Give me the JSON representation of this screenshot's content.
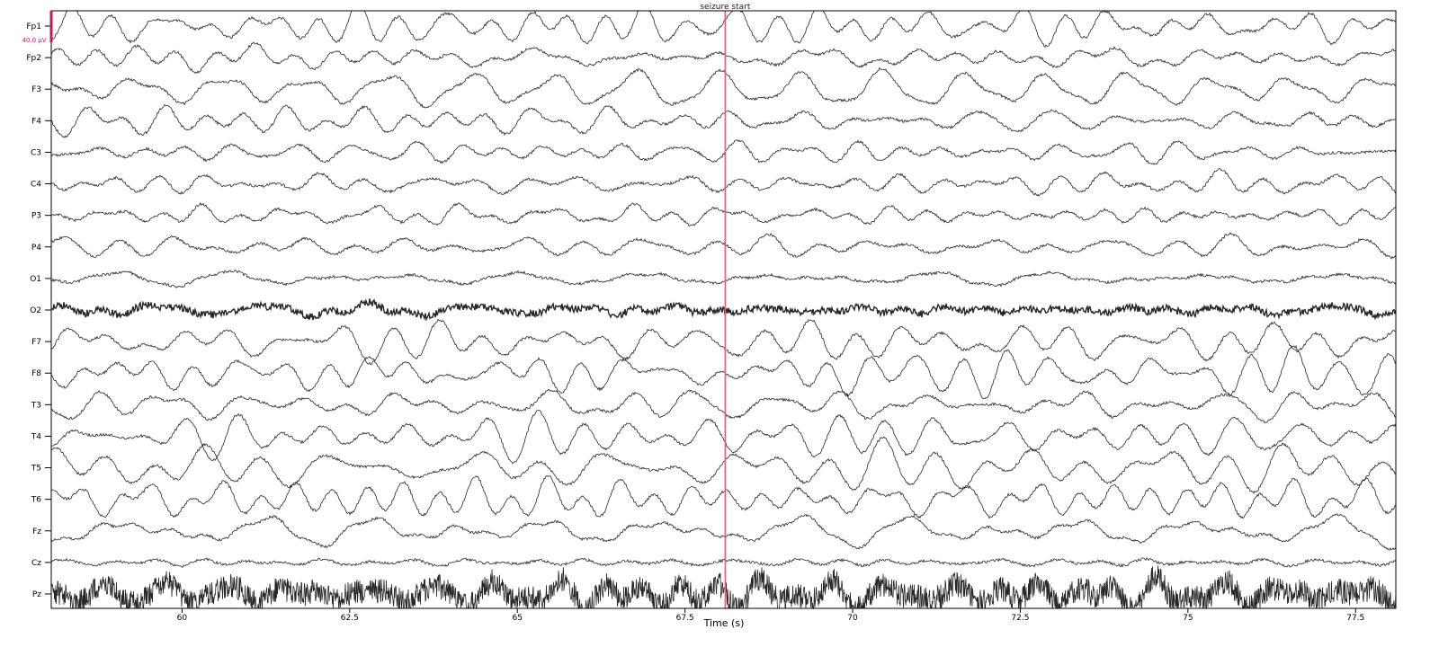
{
  "chart_data": {
    "type": "line",
    "title": "",
    "xlabel": "Time (s)",
    "ylabel": "",
    "xlim": [
      58.05,
      78.1
    ],
    "xticks": [
      60,
      62.5,
      65,
      67.5,
      70,
      72.5,
      75,
      77.5
    ],
    "xtick_labels": [
      "60",
      "62.5",
      "65",
      "67.5",
      "70",
      "72.5",
      "75",
      "77.5"
    ],
    "channels": [
      "Fp1",
      "Fp2",
      "F3",
      "F4",
      "C3",
      "C4",
      "P3",
      "P4",
      "O1",
      "O2",
      "F7",
      "F8",
      "T3",
      "T4",
      "T5",
      "T6",
      "Fz",
      "Cz",
      "Pz"
    ],
    "scale_bar": {
      "label": "40.0 µV",
      "color": "#c2185b"
    },
    "annotation": {
      "label": "seizure start",
      "time": 68.1,
      "color": "#f06070"
    },
    "trace_color": "#000000",
    "grid": false
  }
}
